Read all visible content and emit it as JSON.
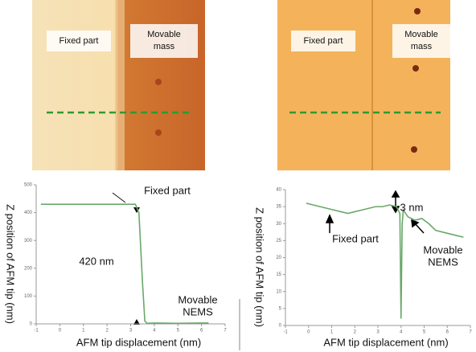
{
  "images": [
    {
      "labels": [
        "Fixed part",
        [
          "Movable",
          "mass"
        ]
      ]
    },
    {
      "labels": [
        "Fixed part",
        [
          "Movable",
          "mass"
        ]
      ]
    }
  ],
  "chart_data": [
    {
      "type": "line",
      "ylabel": "Z position of AFM tip (nm)",
      "xlabel": "AFM tip displacement (nm)",
      "annotations": [
        "Fixed part",
        "420 nm",
        [
          "Movable",
          "NEMS"
        ]
      ],
      "xlim": [
        -1,
        7
      ],
      "xticks": [
        -1,
        0,
        1,
        2,
        3,
        4,
        5,
        6,
        7
      ],
      "ylim": [
        0,
        500
      ],
      "yticks": [
        0,
        100,
        200,
        300,
        400,
        500
      ],
      "x": [
        -0.8,
        0,
        1,
        2,
        3,
        3.2,
        3.35,
        3.5,
        3.6,
        3.7,
        4,
        5,
        6,
        6.3
      ],
      "series": [
        {
          "color": "#6aa86a",
          "values": [
            430,
            430,
            430,
            430,
            430,
            430,
            400,
            150,
            10,
            2,
            3,
            2,
            3,
            3
          ]
        }
      ]
    },
    {
      "type": "line",
      "ylabel": "Z position of AFM tip (nm)",
      "xlabel": "AFM tip displacement (nm)",
      "annotations": [
        "3 nm",
        "Fixed part",
        [
          "Movable",
          "NEMS"
        ]
      ],
      "xlim": [
        -1,
        7
      ],
      "xticks": [
        -1,
        0,
        1,
        2,
        3,
        4,
        5,
        6,
        7
      ],
      "ylim": [
        0,
        40
      ],
      "yticks": [
        0,
        5,
        10,
        15,
        20,
        25,
        30,
        35,
        40
      ],
      "x": [
        -0.1,
        0.2,
        0.5,
        0.8,
        1.1,
        1.4,
        1.7,
        2.0,
        2.3,
        2.6,
        2.9,
        3.2,
        3.5,
        3.8,
        3.95,
        4.0,
        4.05,
        4.1,
        4.3,
        4.6,
        4.9,
        5.2,
        5.5,
        5.8,
        6.1,
        6.4,
        6.7
      ],
      "series": [
        {
          "color": "#6aa86a",
          "values": [
            36,
            35.5,
            35,
            34.5,
            34,
            33.5,
            33,
            33.5,
            34,
            34.5,
            35,
            35,
            35.5,
            35,
            33,
            2,
            30,
            34,
            32,
            31,
            31.5,
            30,
            28,
            27.5,
            27,
            26.5,
            26
          ]
        }
      ]
    }
  ]
}
